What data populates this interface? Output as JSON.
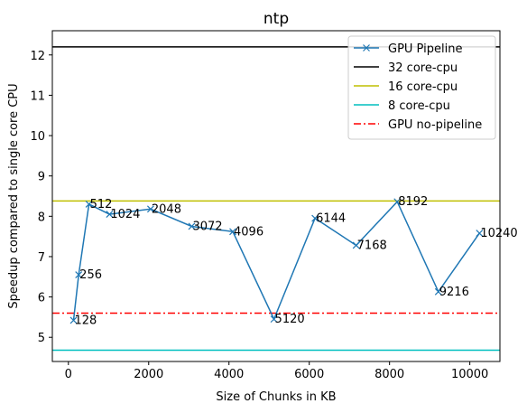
{
  "chart_data": {
    "type": "line",
    "title": "ntp",
    "xlabel": "Size of Chunks in KB",
    "ylabel": "Speedup compared to single core CPU",
    "xlim": [
      -400,
      10750
    ],
    "ylim": [
      4.4,
      12.6
    ],
    "xticks": [
      0,
      2000,
      4000,
      6000,
      8000,
      10000
    ],
    "yticks": [
      5,
      6,
      7,
      8,
      9,
      10,
      11,
      12
    ],
    "grid": false,
    "legend_position": "top-right",
    "series": [
      {
        "name": "GPU Pipeline",
        "color": "#1f77b4",
        "marker": "x",
        "x": [
          128,
          256,
          512,
          1024,
          2048,
          3072,
          4096,
          5120,
          6144,
          7168,
          8192,
          9216,
          10240
        ],
        "y": [
          5.42,
          6.55,
          8.3,
          8.05,
          8.18,
          7.75,
          7.62,
          5.45,
          7.95,
          7.28,
          8.36,
          6.13,
          7.58
        ],
        "point_labels": [
          "128",
          "256",
          "512",
          "1024",
          "2048",
          "3072",
          "4096",
          "5120",
          "6144",
          "7168",
          "8192",
          "9216",
          "10240"
        ]
      }
    ],
    "reference_lines": [
      {
        "name": "32 core-cpu",
        "y": 12.2,
        "color": "#000000",
        "style": "solid"
      },
      {
        "name": "16 core-cpu",
        "y": 8.38,
        "color": "#bfbf00",
        "style": "solid"
      },
      {
        "name": "8 core-cpu",
        "y": 4.68,
        "color": "#00bfbf",
        "style": "solid"
      },
      {
        "name": "GPU no-pipeline",
        "y": 5.6,
        "color": "#ff0000",
        "style": "dashdot"
      }
    ]
  }
}
